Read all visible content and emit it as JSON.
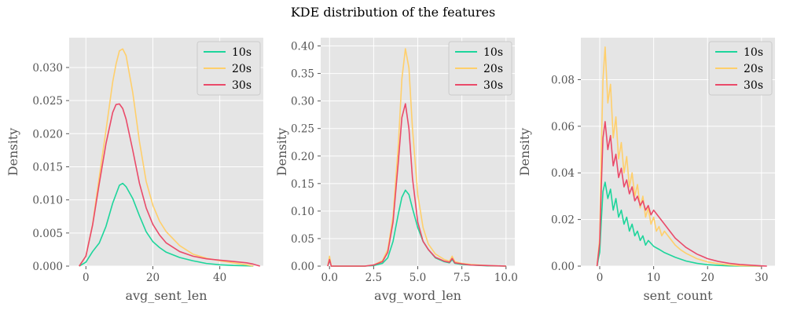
{
  "figure": {
    "title": "KDE distribution of the features"
  },
  "colors": {
    "panel_bg": "#e5e5e5",
    "grid": "#ffffff",
    "10s": "#1dd59b",
    "20s": "#ffcf6b",
    "30s": "#ea4a69"
  },
  "chart_data": [
    {
      "type": "line",
      "xlabel": "avg_sent_len",
      "ylabel": "Density",
      "xlim": [
        -5,
        53
      ],
      "ylim": [
        0,
        0.0345
      ],
      "xticks": [
        0,
        20,
        40
      ],
      "xtick_labels": [
        "0",
        "20",
        "40"
      ],
      "yticks": [
        0,
        0.005,
        0.01,
        0.015,
        0.02,
        0.025,
        0.03
      ],
      "ytick_labels": [
        "0.000",
        "0.005",
        "0.010",
        "0.015",
        "0.020",
        "0.025",
        "0.030"
      ],
      "grid": true,
      "legend": "top-right",
      "series": [
        {
          "name": "10s",
          "x": [
            -2,
            0,
            2,
            4,
            6,
            8,
            10,
            11,
            12,
            14,
            16,
            18,
            20,
            22,
            24,
            28,
            32,
            36,
            40,
            44,
            48,
            50
          ],
          "y": [
            0,
            0.0006,
            0.0022,
            0.0035,
            0.006,
            0.0095,
            0.0122,
            0.0125,
            0.012,
            0.0102,
            0.0076,
            0.0052,
            0.0037,
            0.0028,
            0.0021,
            0.0013,
            0.0008,
            0.0004,
            0.0002,
            0.0001,
            5e-05,
            0
          ]
        },
        {
          "name": "20s",
          "x": [
            -2,
            0,
            2,
            4,
            6,
            8,
            9,
            10,
            11,
            12,
            14,
            16,
            18,
            20,
            22,
            24,
            28,
            32,
            36,
            40,
            44,
            48,
            50
          ],
          "y": [
            0,
            0.0015,
            0.0063,
            0.0135,
            0.0205,
            0.0278,
            0.0305,
            0.0325,
            0.0328,
            0.0318,
            0.0262,
            0.0188,
            0.0128,
            0.0092,
            0.0068,
            0.0052,
            0.0031,
            0.0018,
            0.0012,
            0.0008,
            0.0005,
            0.0002,
            0
          ]
        },
        {
          "name": "30s",
          "x": [
            -2,
            0,
            2,
            4,
            6,
            8,
            9,
            10,
            11,
            12,
            14,
            16,
            18,
            20,
            22,
            24,
            28,
            32,
            36,
            40,
            44,
            48,
            50,
            52
          ],
          "y": [
            0,
            0.0015,
            0.0062,
            0.0125,
            0.0185,
            0.0232,
            0.0244,
            0.0245,
            0.0238,
            0.0222,
            0.0175,
            0.0125,
            0.0088,
            0.0063,
            0.0047,
            0.0035,
            0.0022,
            0.0015,
            0.0011,
            0.0009,
            0.0007,
            0.0005,
            0.0003,
            0
          ]
        }
      ]
    },
    {
      "type": "line",
      "xlabel": "avg_word_len",
      "ylabel": "Density",
      "xlim": [
        -0.5,
        10.5
      ],
      "ylim": [
        0,
        0.415
      ],
      "xticks": [
        0,
        2.5,
        5,
        7.5,
        10
      ],
      "xtick_labels": [
        "0.0",
        "2.5",
        "5.0",
        "7.5",
        "10.0"
      ],
      "yticks": [
        0,
        0.05,
        0.1,
        0.15,
        0.2,
        0.25,
        0.3,
        0.35,
        0.4
      ],
      "ytick_labels": [
        "0.00",
        "0.05",
        "0.10",
        "0.15",
        "0.20",
        "0.25",
        "0.30",
        "0.35",
        "0.40"
      ],
      "grid": true,
      "legend": "top-right",
      "series": [
        {
          "name": "10s",
          "x": [
            -0.1,
            0,
            0.1,
            0.25,
            1,
            2,
            2.5,
            3,
            3.3,
            3.6,
            3.9,
            4.1,
            4.3,
            4.5,
            4.7,
            5,
            5.3,
            5.6,
            6,
            6.5,
            6.8,
            6.95,
            7.1,
            7.5,
            8,
            9,
            10
          ],
          "y": [
            0,
            0.01,
            0,
            0,
            0,
            0,
            0.001,
            0.005,
            0.015,
            0.045,
            0.095,
            0.125,
            0.138,
            0.13,
            0.105,
            0.07,
            0.045,
            0.03,
            0.015,
            0.008,
            0.006,
            0.012,
            0.005,
            0.003,
            0.002,
            0.0005,
            0
          ]
        },
        {
          "name": "20s",
          "x": [
            -0.1,
            0,
            0.1,
            0.25,
            1,
            2,
            2.5,
            3,
            3.3,
            3.6,
            3.9,
            4.1,
            4.3,
            4.5,
            4.7,
            5,
            5.3,
            5.6,
            6,
            6.5,
            6.8,
            6.95,
            7.1,
            7.5,
            8,
            9,
            10
          ],
          "y": [
            0,
            0.018,
            0,
            0,
            0,
            0,
            0.002,
            0.01,
            0.03,
            0.09,
            0.22,
            0.34,
            0.395,
            0.36,
            0.25,
            0.13,
            0.07,
            0.04,
            0.022,
            0.012,
            0.009,
            0.018,
            0.008,
            0.005,
            0.003,
            0.001,
            0
          ]
        },
        {
          "name": "30s",
          "x": [
            -0.1,
            0,
            0.1,
            0.25,
            1,
            2,
            2.5,
            3,
            3.3,
            3.6,
            3.9,
            4.1,
            4.3,
            4.5,
            4.7,
            5,
            5.3,
            5.6,
            6,
            6.5,
            6.8,
            6.95,
            7.1,
            7.5,
            8,
            9,
            10
          ],
          "y": [
            0,
            0.012,
            0,
            0,
            0,
            0,
            0.002,
            0.008,
            0.025,
            0.08,
            0.19,
            0.27,
            0.295,
            0.25,
            0.16,
            0.08,
            0.045,
            0.03,
            0.016,
            0.009,
            0.007,
            0.014,
            0.006,
            0.004,
            0.002,
            0.001,
            0
          ]
        }
      ]
    },
    {
      "type": "line",
      "xlabel": "sent_count",
      "ylabel": "Density",
      "xlim": [
        -3.5,
        32.5
      ],
      "ylim": [
        0,
        0.098
      ],
      "xticks": [
        0,
        10,
        20,
        30
      ],
      "xtick_labels": [
        "0",
        "10",
        "20",
        "30"
      ],
      "yticks": [
        0,
        0.02,
        0.04,
        0.06,
        0.08
      ],
      "ytick_labels": [
        "0.00",
        "0.02",
        "0.04",
        "0.06",
        "0.08"
      ],
      "grid": true,
      "legend": "top-right",
      "series": [
        {
          "name": "10s",
          "x": [
            -0.5,
            0,
            0.3,
            0.6,
            1,
            1.5,
            2,
            2.5,
            3,
            3.5,
            4,
            4.5,
            5,
            5.5,
            6,
            6.5,
            7,
            7.5,
            8,
            8.5,
            9,
            10,
            11,
            12,
            14,
            16,
            18,
            20,
            22,
            24,
            26,
            28,
            30
          ],
          "y": [
            0,
            0.006,
            0.02,
            0.032,
            0.036,
            0.029,
            0.033,
            0.024,
            0.029,
            0.021,
            0.024,
            0.018,
            0.021,
            0.015,
            0.018,
            0.013,
            0.015,
            0.011,
            0.013,
            0.009,
            0.011,
            0.0085,
            0.0072,
            0.0058,
            0.0038,
            0.0022,
            0.0012,
            0.0006,
            0.0003,
            0.0001,
            5e-05,
            2e-05,
            0
          ]
        },
        {
          "name": "20s",
          "x": [
            -0.5,
            0,
            0.3,
            0.6,
            1,
            1.5,
            2,
            2.5,
            3,
            3.5,
            4,
            4.5,
            5,
            5.5,
            6,
            6.5,
            7,
            7.5,
            8,
            8.5,
            9,
            9.5,
            10,
            10.5,
            11,
            11.5,
            12,
            13,
            14,
            15,
            16,
            18,
            20,
            22,
            24,
            26,
            28,
            30
          ],
          "y": [
            0,
            0.012,
            0.05,
            0.08,
            0.094,
            0.07,
            0.078,
            0.055,
            0.064,
            0.046,
            0.053,
            0.04,
            0.047,
            0.034,
            0.04,
            0.03,
            0.035,
            0.025,
            0.03,
            0.021,
            0.025,
            0.018,
            0.021,
            0.015,
            0.017,
            0.013,
            0.015,
            0.012,
            0.009,
            0.007,
            0.0055,
            0.0032,
            0.0018,
            0.001,
            0.0005,
            0.0002,
            0.0001,
            0
          ]
        },
        {
          "name": "30s",
          "x": [
            -0.5,
            0,
            0.3,
            0.6,
            1,
            1.5,
            2,
            2.5,
            3,
            3.5,
            4,
            4.5,
            5,
            5.5,
            6,
            6.5,
            7,
            7.5,
            8,
            8.5,
            9,
            9.5,
            10,
            11,
            12,
            13,
            14,
            15,
            16,
            18,
            20,
            22,
            24,
            26,
            28,
            30,
            31
          ],
          "y": [
            0,
            0.01,
            0.035,
            0.055,
            0.062,
            0.05,
            0.056,
            0.043,
            0.048,
            0.038,
            0.042,
            0.034,
            0.037,
            0.031,
            0.034,
            0.028,
            0.03,
            0.026,
            0.028,
            0.024,
            0.026,
            0.022,
            0.024,
            0.021,
            0.018,
            0.015,
            0.012,
            0.01,
            0.008,
            0.0052,
            0.0032,
            0.002,
            0.0012,
            0.0007,
            0.0004,
            0.0001,
            0
          ]
        }
      ]
    }
  ]
}
